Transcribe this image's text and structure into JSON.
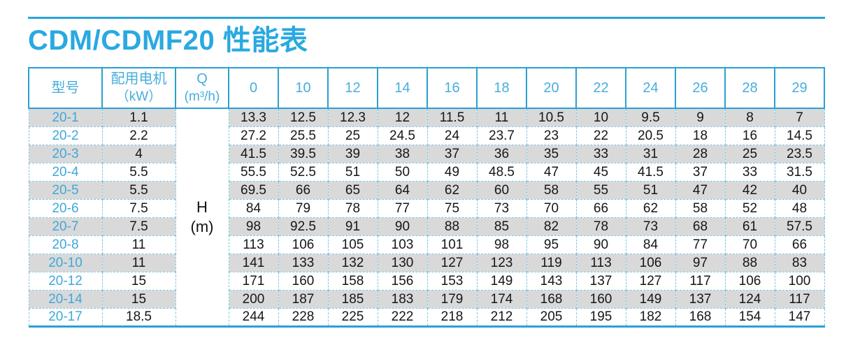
{
  "page": {
    "title": "CDM/CDMF20 性能表"
  },
  "colors": {
    "accent_blue": "#2aa0d3",
    "title_blue": "#29a9e1",
    "header_text_blue": "#46aedd",
    "model_text_blue": "#3ea9da",
    "stripe_gray": "#d9d9d9",
    "dashed_border_blue": "#7ec5e2"
  },
  "table": {
    "headers": {
      "model": "型号",
      "motor_line1": "配用电机",
      "motor_line2": "（kW）",
      "q_line1": "Q",
      "q_line2": "(m³/h)",
      "flow_values": [
        "0",
        "10",
        "12",
        "14",
        "16",
        "18",
        "20",
        "22",
        "24",
        "26",
        "28",
        "29"
      ]
    },
    "merged_cell": {
      "line1": "H",
      "line2": "(m)"
    },
    "rows": [
      {
        "model": "20-1",
        "motor": "1.1",
        "values": [
          "13.3",
          "12.5",
          "12.3",
          "12",
          "11.5",
          "11",
          "10.5",
          "10",
          "9.5",
          "9",
          "8",
          "7"
        ]
      },
      {
        "model": "20-2",
        "motor": "2.2",
        "values": [
          "27.2",
          "25.5",
          "25",
          "24.5",
          "24",
          "23.7",
          "23",
          "22",
          "20.5",
          "18",
          "16",
          "14.5"
        ]
      },
      {
        "model": "20-3",
        "motor": "4",
        "values": [
          "41.5",
          "39.5",
          "39",
          "38",
          "37",
          "36",
          "35",
          "33",
          "31",
          "28",
          "25",
          "23.5"
        ]
      },
      {
        "model": "20-4",
        "motor": "5.5",
        "values": [
          "55.5",
          "52.5",
          "51",
          "50",
          "49",
          "48.5",
          "47",
          "45",
          "41.5",
          "37",
          "33",
          "31.5"
        ]
      },
      {
        "model": "20-5",
        "motor": "5.5",
        "values": [
          "69.5",
          "66",
          "65",
          "64",
          "62",
          "60",
          "58",
          "55",
          "51",
          "47",
          "42",
          "40"
        ]
      },
      {
        "model": "20-6",
        "motor": "7.5",
        "values": [
          "84",
          "79",
          "78",
          "77",
          "75",
          "73",
          "70",
          "66",
          "62",
          "58",
          "52",
          "48"
        ]
      },
      {
        "model": "20-7",
        "motor": "7.5",
        "values": [
          "98",
          "92.5",
          "91",
          "90",
          "88",
          "85",
          "82",
          "78",
          "73",
          "68",
          "61",
          "57.5"
        ]
      },
      {
        "model": "20-8",
        "motor": "11",
        "values": [
          "113",
          "106",
          "105",
          "103",
          "101",
          "98",
          "95",
          "90",
          "84",
          "77",
          "70",
          "66"
        ]
      },
      {
        "model": "20-10",
        "motor": "11",
        "values": [
          "141",
          "133",
          "132",
          "130",
          "127",
          "123",
          "119",
          "113",
          "106",
          "97",
          "88",
          "83"
        ]
      },
      {
        "model": "20-12",
        "motor": "15",
        "values": [
          "171",
          "160",
          "158",
          "156",
          "153",
          "149",
          "143",
          "137",
          "127",
          "117",
          "106",
          "100"
        ]
      },
      {
        "model": "20-14",
        "motor": "15",
        "values": [
          "200",
          "187",
          "185",
          "183",
          "179",
          "174",
          "168",
          "160",
          "149",
          "137",
          "124",
          "117"
        ]
      },
      {
        "model": "20-17",
        "motor": "18.5",
        "values": [
          "244",
          "228",
          "225",
          "222",
          "218",
          "212",
          "205",
          "195",
          "182",
          "168",
          "154",
          "147"
        ]
      }
    ]
  }
}
